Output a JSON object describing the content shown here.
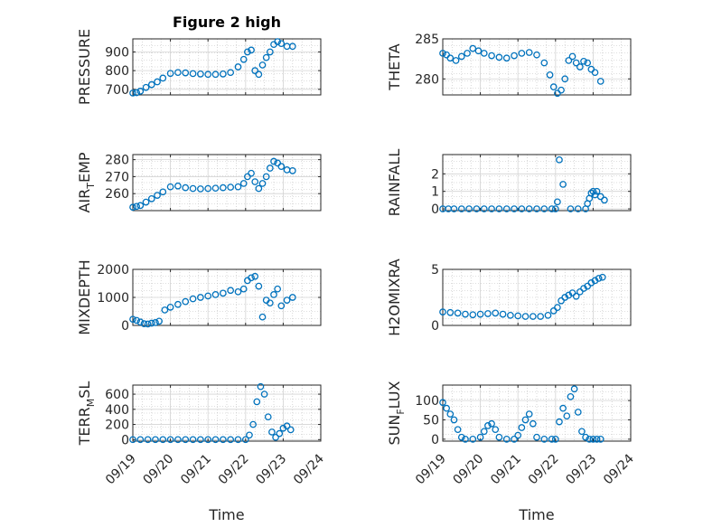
{
  "figure": {
    "title": "Figure 2 high",
    "xlabel": "Time"
  },
  "colors": {
    "marker": "#0072BD",
    "axis": "#262626",
    "grid": "#bdbdbd"
  },
  "chart_data": [
    {
      "type": "scatter",
      "name": "pressure",
      "ylabel": "PRESSURE",
      "ylabel_main": "PRESSURE",
      "ylabel_sub": "",
      "ylabel_tail": "",
      "ylim": [
        670,
        970
      ],
      "yticks": [
        700,
        800,
        900
      ],
      "x": [
        0,
        0.1,
        0.2,
        0.35,
        0.5,
        0.65,
        0.8,
        1,
        1.2,
        1.4,
        1.6,
        1.8,
        2,
        2.2,
        2.4,
        2.6,
        2.8,
        2.95,
        3.05,
        3.15,
        3.25,
        3.35,
        3.45,
        3.55,
        3.65,
        3.75,
        3.85,
        3.95,
        4.1,
        4.25
      ],
      "y": [
        680,
        682,
        690,
        710,
        725,
        740,
        760,
        785,
        790,
        788,
        784,
        782,
        780,
        780,
        782,
        790,
        820,
        860,
        900,
        910,
        800,
        780,
        830,
        870,
        900,
        940,
        955,
        945,
        930,
        930
      ]
    },
    {
      "type": "scatter",
      "name": "theta",
      "ylabel": "THETA",
      "ylabel_main": "THETA",
      "ylabel_sub": "",
      "ylabel_tail": "",
      "ylim": [
        278,
        285
      ],
      "yticks": [
        280,
        285
      ],
      "x": [
        0,
        0.1,
        0.2,
        0.35,
        0.5,
        0.65,
        0.8,
        0.95,
        1.1,
        1.3,
        1.5,
        1.7,
        1.9,
        2.1,
        2.3,
        2.5,
        2.7,
        2.85,
        2.95,
        3.05,
        3.15,
        3.25,
        3.35,
        3.45,
        3.55,
        3.65,
        3.75,
        3.85,
        3.95,
        4.05,
        4.2
      ],
      "y": [
        283.2,
        283.0,
        282.6,
        282.3,
        282.8,
        283.2,
        283.8,
        283.5,
        283.2,
        282.9,
        282.7,
        282.6,
        282.9,
        283.2,
        283.3,
        283.0,
        282.0,
        280.5,
        279.0,
        278.2,
        278.6,
        280.0,
        282.3,
        282.8,
        282.0,
        281.5,
        282.2,
        282.0,
        281.2,
        280.8,
        279.7
      ]
    },
    {
      "type": "scatter",
      "name": "air_temp",
      "ylabel": "AIR_TEMP",
      "ylabel_main": "AIR",
      "ylabel_sub": "T",
      "ylabel_tail": "EMP",
      "ylim": [
        250,
        283
      ],
      "yticks": [
        260,
        270,
        280
      ],
      "x": [
        0,
        0.1,
        0.2,
        0.35,
        0.5,
        0.65,
        0.8,
        1,
        1.2,
        1.4,
        1.6,
        1.8,
        2,
        2.2,
        2.4,
        2.6,
        2.8,
        2.95,
        3.05,
        3.15,
        3.25,
        3.35,
        3.45,
        3.55,
        3.65,
        3.75,
        3.85,
        3.95,
        4.1,
        4.25
      ],
      "y": [
        252,
        252.5,
        253,
        255,
        257,
        259,
        261,
        264,
        264.5,
        263.5,
        263,
        262.8,
        263,
        263.2,
        263.5,
        263.8,
        264,
        266,
        270,
        272,
        267,
        263,
        266,
        270,
        275,
        279,
        278,
        276,
        274,
        273.5
      ]
    },
    {
      "type": "scatter",
      "name": "rainfall",
      "ylabel": "RAINFALL",
      "ylabel_main": "RAINFALL",
      "ylabel_sub": "",
      "ylabel_tail": "",
      "ylim": [
        -0.1,
        3.1
      ],
      "yticks": [
        0,
        1,
        2
      ],
      "x": [
        0,
        0.15,
        0.3,
        0.5,
        0.7,
        0.9,
        1.1,
        1.3,
        1.5,
        1.7,
        1.9,
        2.1,
        2.3,
        2.5,
        2.7,
        2.9,
        3.0,
        3.05,
        3.1,
        3.2,
        3.4,
        3.6,
        3.8,
        3.85,
        3.9,
        3.95,
        4.0,
        4.05,
        4.1,
        4.2,
        4.3
      ],
      "y": [
        0,
        0,
        0,
        0,
        0,
        0,
        0,
        0,
        0,
        0,
        0,
        0,
        0,
        0,
        0,
        0,
        0,
        0.4,
        2.8,
        1.4,
        0,
        0,
        0,
        0.3,
        0.6,
        0.9,
        1.0,
        0.8,
        1.0,
        0.7,
        0.5
      ]
    },
    {
      "type": "scatter",
      "name": "mixdepth",
      "ylabel": "MIXDEPTH",
      "ylabel_main": "MIXDEPTH",
      "ylabel_sub": "",
      "ylabel_tail": "",
      "ylim": [
        0,
        2000
      ],
      "yticks": [
        0,
        1000,
        2000
      ],
      "x": [
        0,
        0.1,
        0.2,
        0.3,
        0.4,
        0.5,
        0.6,
        0.7,
        0.85,
        1,
        1.2,
        1.4,
        1.6,
        1.8,
        2,
        2.2,
        2.4,
        2.6,
        2.8,
        2.95,
        3.05,
        3.15,
        3.25,
        3.35,
        3.45,
        3.55,
        3.65,
        3.75,
        3.85,
        3.95,
        4.1,
        4.25
      ],
      "y": [
        220,
        180,
        120,
        60,
        50,
        80,
        100,
        150,
        550,
        650,
        750,
        850,
        950,
        1000,
        1050,
        1100,
        1150,
        1250,
        1200,
        1300,
        1600,
        1700,
        1750,
        1400,
        300,
        900,
        800,
        1100,
        1300,
        700,
        900,
        1000
      ]
    },
    {
      "type": "scatter",
      "name": "h2omixra",
      "ylabel": "H2OMIXRA",
      "ylabel_main": "H2OMIXRA",
      "ylabel_sub": "",
      "ylabel_tail": "",
      "ylim": [
        0,
        5
      ],
      "yticks": [
        0,
        5
      ],
      "x": [
        0,
        0.2,
        0.4,
        0.6,
        0.8,
        1,
        1.2,
        1.4,
        1.6,
        1.8,
        2,
        2.2,
        2.4,
        2.6,
        2.8,
        2.95,
        3.05,
        3.15,
        3.25,
        3.35,
        3.45,
        3.55,
        3.65,
        3.75,
        3.85,
        3.95,
        4.05,
        4.15,
        4.25
      ],
      "y": [
        1.2,
        1.15,
        1.1,
        1.0,
        0.95,
        1.0,
        1.05,
        1.1,
        1.0,
        0.9,
        0.85,
        0.8,
        0.8,
        0.8,
        0.9,
        1.3,
        1.6,
        2.2,
        2.5,
        2.7,
        2.9,
        2.6,
        3.0,
        3.3,
        3.5,
        3.8,
        4.0,
        4.2,
        4.3
      ]
    },
    {
      "type": "scatter",
      "name": "terr_msl",
      "ylabel": "TERR_MSL",
      "ylabel_main": "TERR",
      "ylabel_sub": "M",
      "ylabel_tail": "SL",
      "ylim": [
        -20,
        720
      ],
      "yticks": [
        0,
        200,
        400,
        600
      ],
      "x": [
        0,
        0.2,
        0.4,
        0.6,
        0.8,
        1,
        1.2,
        1.4,
        1.6,
        1.8,
        2,
        2.2,
        2.4,
        2.6,
        2.8,
        3.0,
        3.1,
        3.2,
        3.3,
        3.4,
        3.5,
        3.6,
        3.7,
        3.8,
        3.9,
        4.0,
        4.1,
        4.2
      ],
      "y": [
        0,
        0,
        0,
        0,
        0,
        0,
        0,
        0,
        0,
        0,
        0,
        0,
        0,
        0,
        0,
        0,
        60,
        200,
        500,
        700,
        600,
        300,
        100,
        30,
        80,
        150,
        180,
        130
      ]
    },
    {
      "type": "scatter",
      "name": "sun_flux",
      "ylabel": "SUN_FLUX",
      "ylabel_main": "SUN",
      "ylabel_sub": "F",
      "ylabel_tail": "LUX",
      "ylim": [
        -5,
        140
      ],
      "yticks": [
        0,
        50,
        100
      ],
      "x": [
        0,
        0.1,
        0.2,
        0.3,
        0.4,
        0.5,
        0.6,
        0.8,
        1,
        1.1,
        1.2,
        1.3,
        1.4,
        1.5,
        1.7,
        1.9,
        2.0,
        2.1,
        2.2,
        2.3,
        2.4,
        2.5,
        2.7,
        2.9,
        3.0,
        3.1,
        3.2,
        3.3,
        3.4,
        3.5,
        3.6,
        3.7,
        3.8,
        3.9,
        4.0,
        4.1,
        4.2
      ],
      "y": [
        95,
        80,
        65,
        50,
        25,
        5,
        0,
        0,
        5,
        20,
        35,
        40,
        25,
        5,
        0,
        0,
        10,
        30,
        50,
        65,
        40,
        5,
        0,
        0,
        0,
        45,
        80,
        60,
        110,
        130,
        70,
        20,
        5,
        0,
        0,
        0,
        0
      ]
    }
  ],
  "xaxis": {
    "xlim": [
      0,
      5
    ],
    "ticks": [
      0,
      1,
      2,
      3,
      4,
      5
    ],
    "ticklabels": [
      "09/19",
      "09/20",
      "09/21",
      "09/22",
      "09/23",
      "09/24"
    ]
  }
}
